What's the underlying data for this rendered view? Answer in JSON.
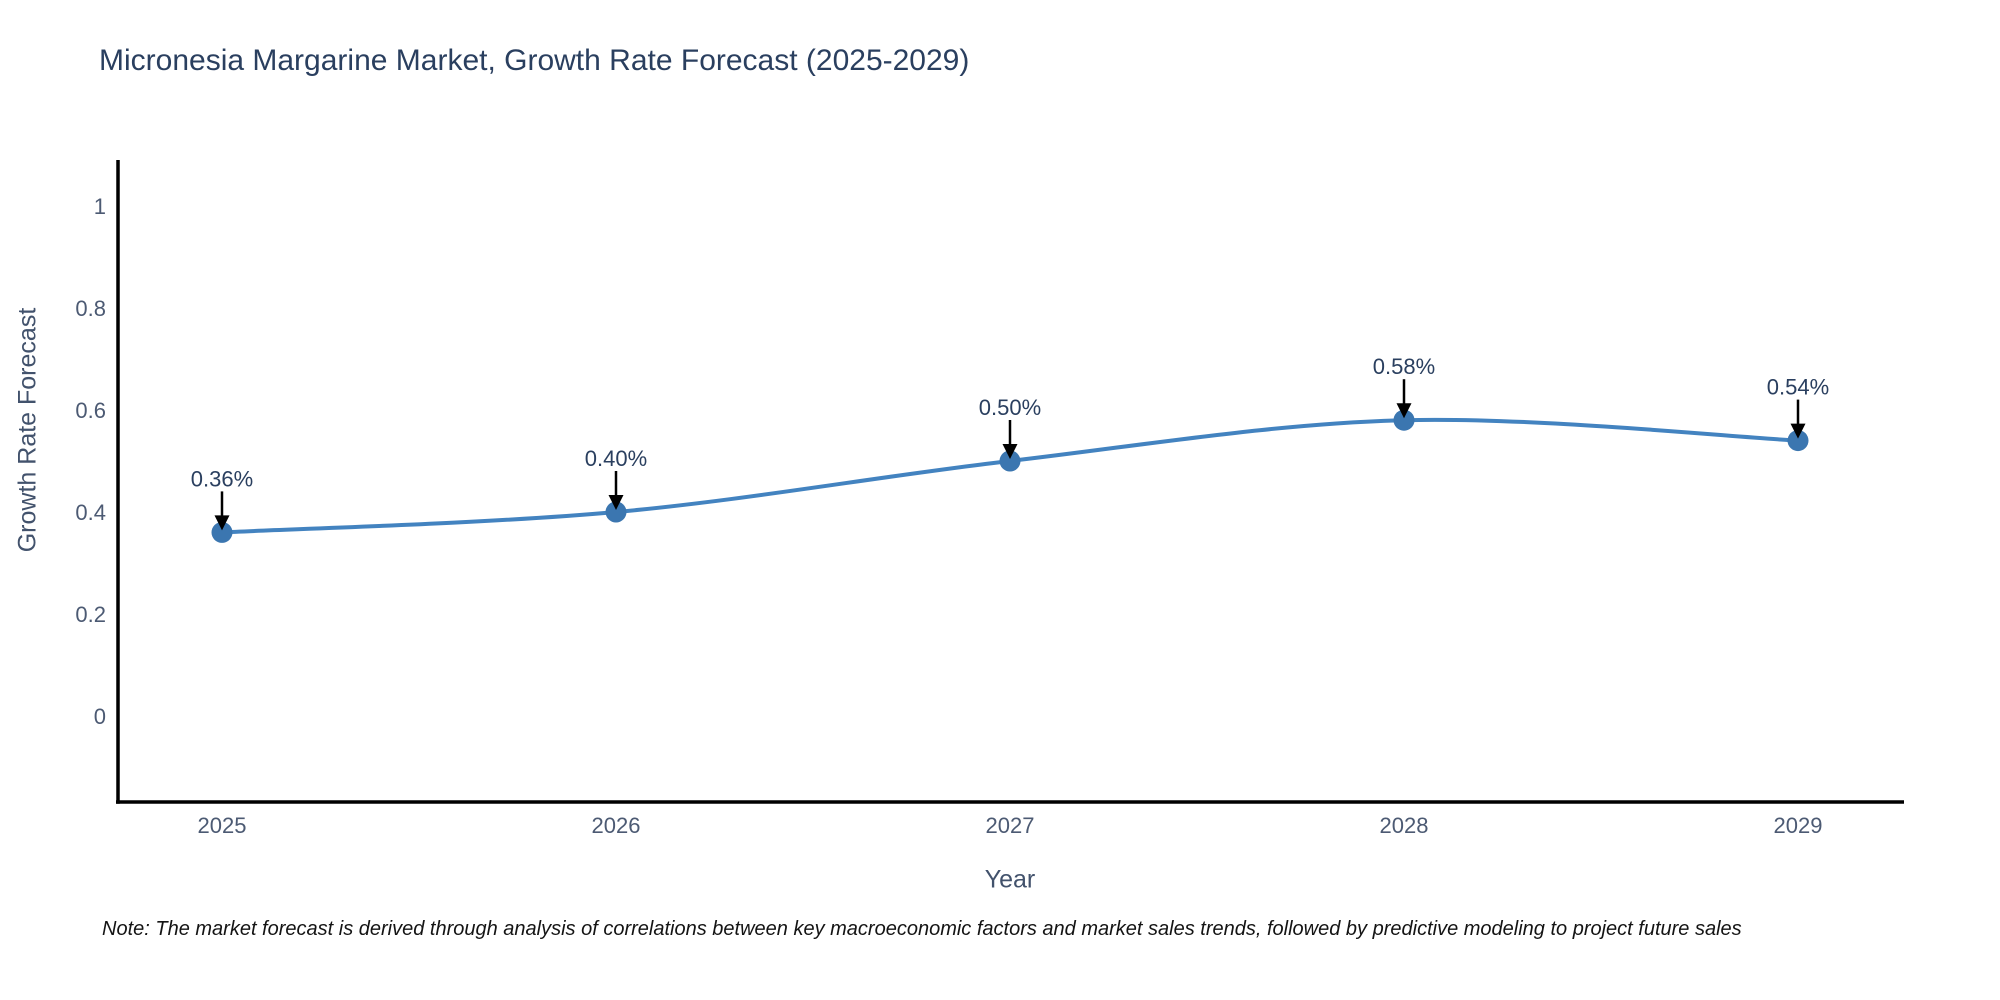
{
  "title": "Micronesia Margarine Market, Growth Rate Forecast (2025-2029)",
  "note": "Note: The market forecast is derived through analysis of correlations between key macroeconomic factors and market sales trends, followed by predictive modeling to project future sales",
  "chart_data": {
    "type": "line",
    "title": "Micronesia Margarine Market, Growth Rate Forecast (2025-2029)",
    "xlabel": "Year",
    "ylabel": "Growth Rate Forecast",
    "x": [
      "2025",
      "2026",
      "2027",
      "2028",
      "2029"
    ],
    "series": [
      {
        "name": "Growth Rate Forecast",
        "values": [
          0.36,
          0.4,
          0.5,
          0.58,
          0.54
        ]
      }
    ],
    "point_labels": [
      "0.36%",
      "0.40%",
      "0.50%",
      "0.58%",
      "0.54%"
    ],
    "annotation_style": "black-down-arrow",
    "line_shape": "spline",
    "grid": false,
    "legend_position": "none",
    "y_ticks": {
      "values": [
        0,
        0.2,
        0.4,
        0.6,
        0.8,
        1
      ],
      "labels": [
        "0",
        "0.2",
        "0.4",
        "0.6",
        "0.8",
        "1"
      ]
    },
    "ylim": [
      -0.17,
      1.09
    ],
    "xlim": [
      2024.73,
      2029.27
    ],
    "colors": {
      "line": "#4383c0",
      "marker": "#3b76b0",
      "axis_line": "#000000",
      "tick_text": "#4c5a73",
      "axis_title_text": "#42526c",
      "title_text": "#2a3f5f",
      "annotation_text": "#2a3f5f",
      "annotation_arrow": "#000000",
      "note_text": "#141414"
    }
  }
}
